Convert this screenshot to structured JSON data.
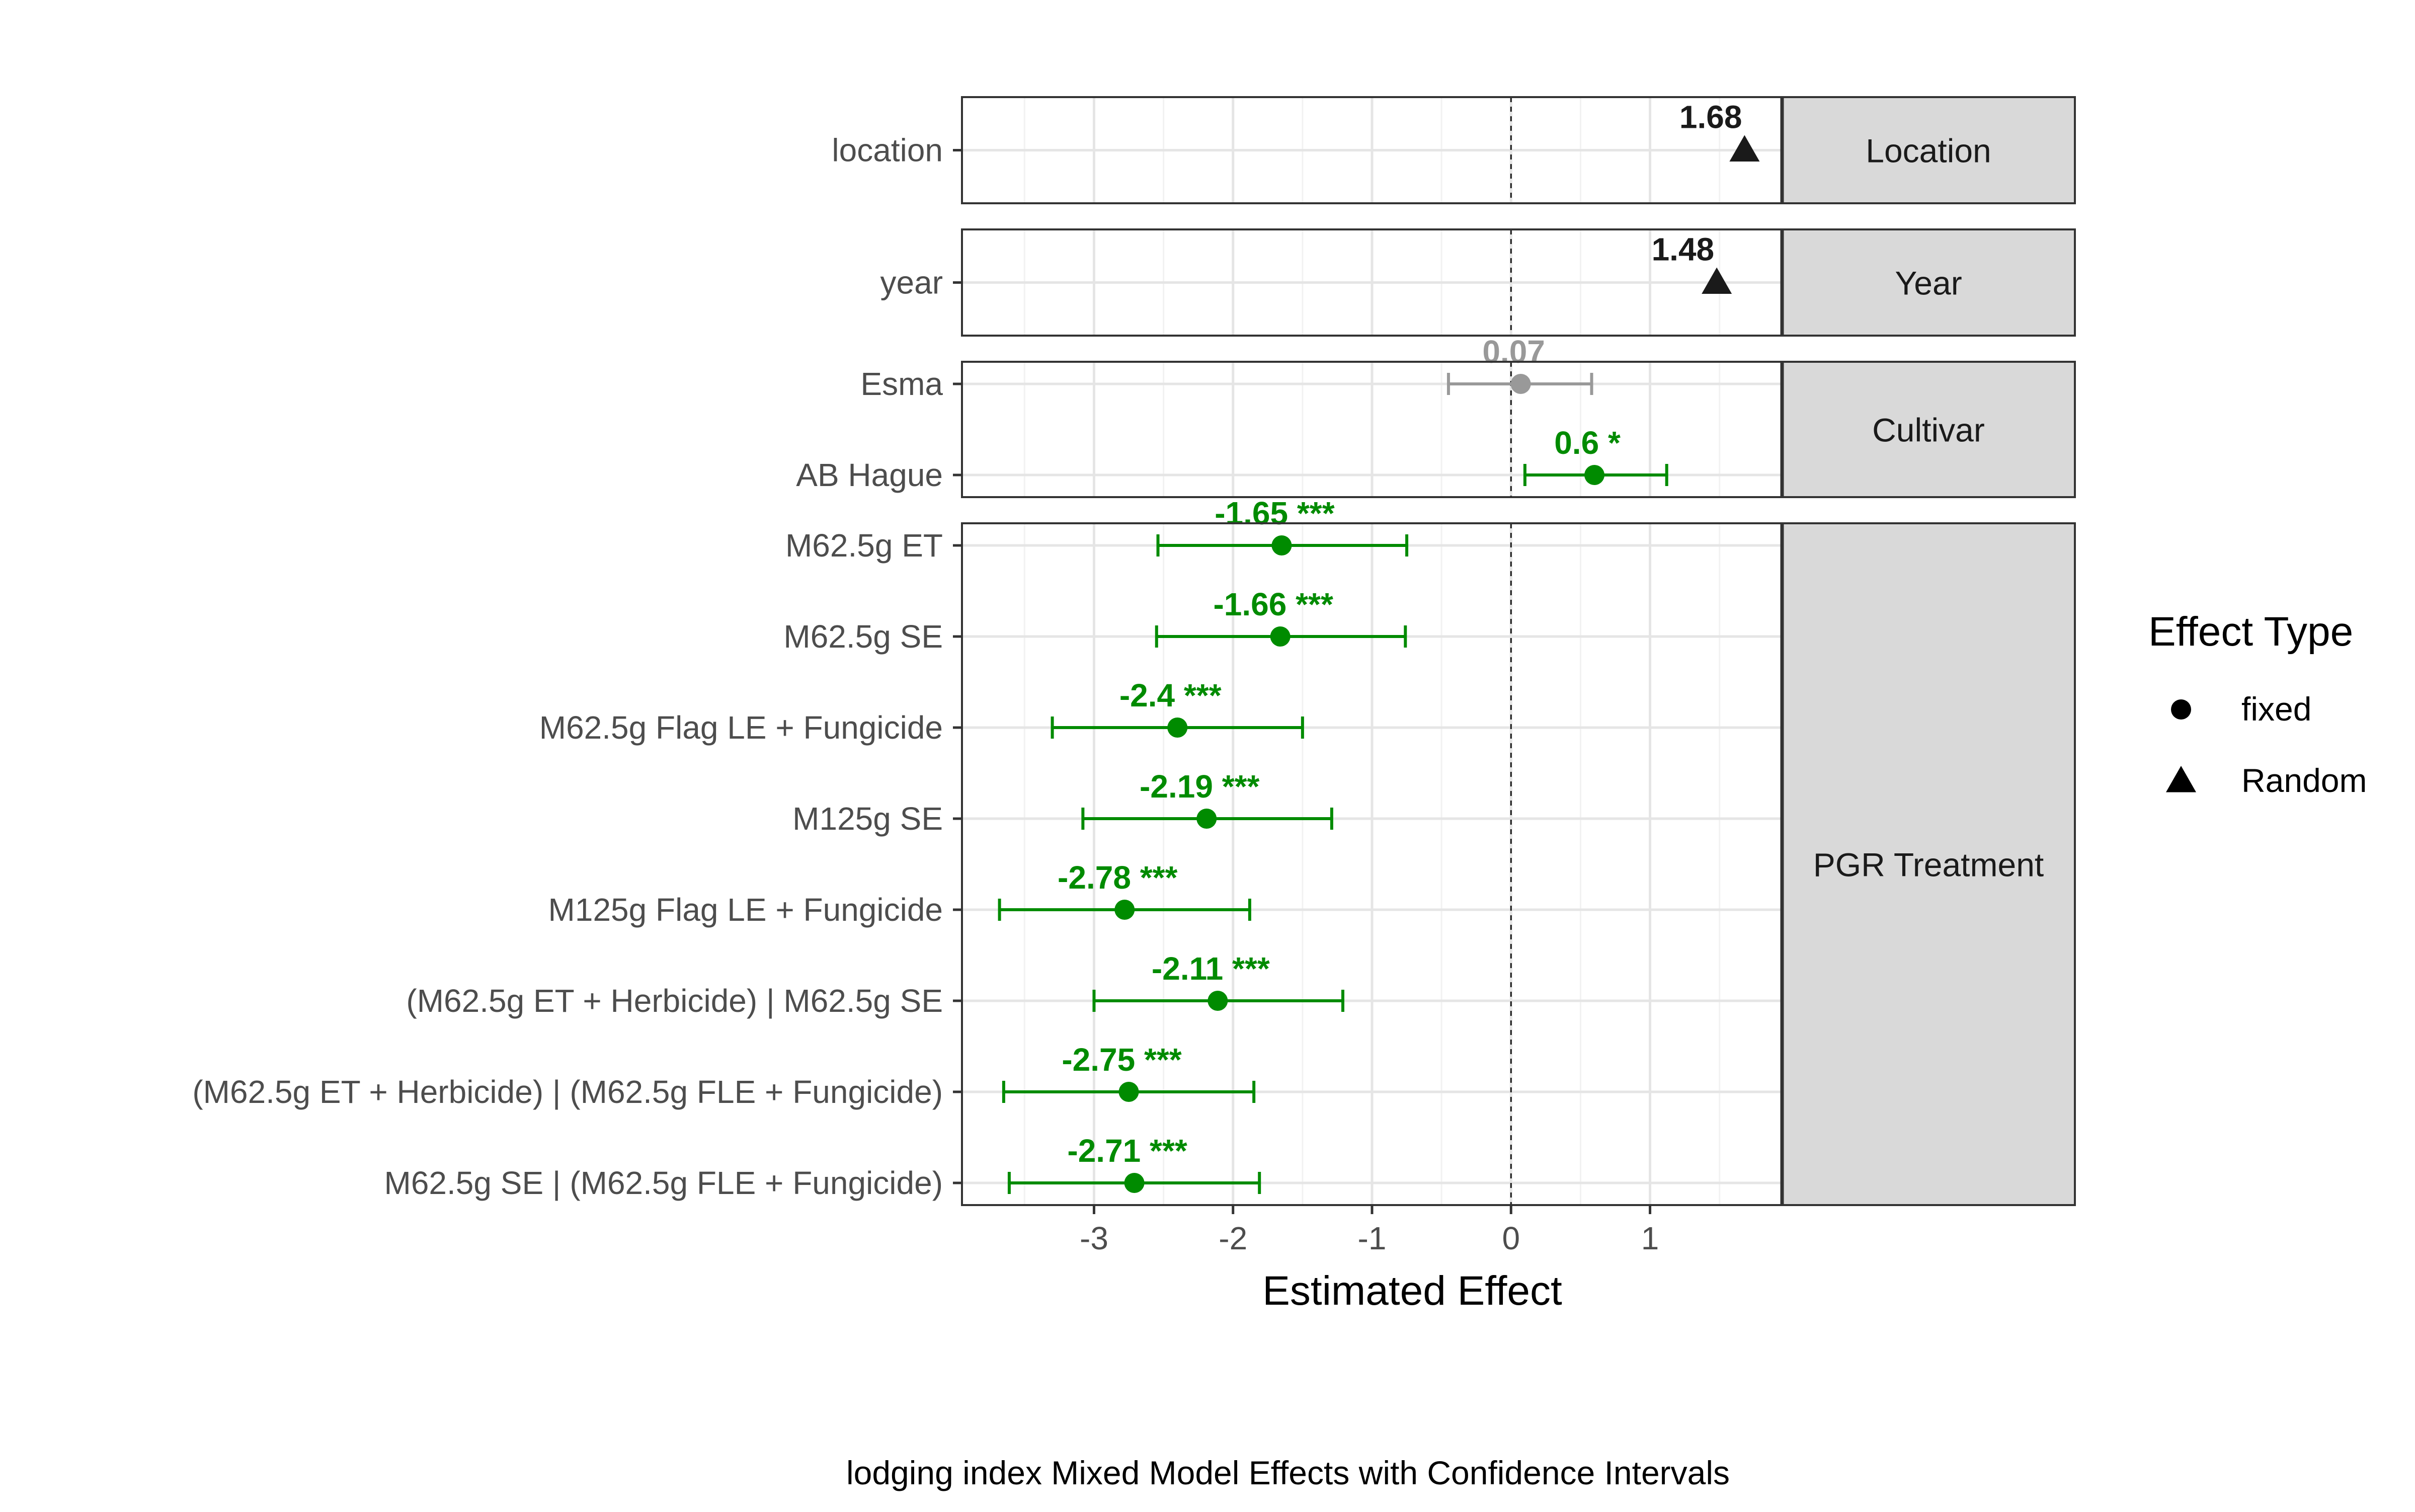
{
  "chart_data": {
    "type": "forest",
    "title": "",
    "caption": "lodging index Mixed Model Effects with Confidence Intervals",
    "xlabel": "Estimated Effect",
    "ylabel": "",
    "xlim": [
      -3.95,
      1.95
    ],
    "x_ticks": [
      -3,
      -2,
      -1,
      0,
      1
    ],
    "x_tick_labels": [
      "-3",
      "-2",
      "-1",
      "0",
      "1"
    ],
    "reference_line": 0,
    "grid": true,
    "legend": {
      "title": "Effect Type",
      "position": "right",
      "entries": [
        {
          "name": "fixed",
          "shape": "circle"
        },
        {
          "name": "Random",
          "shape": "triangle"
        }
      ]
    },
    "colors": {
      "significant": "#008B00",
      "not_significant": "#999999",
      "random": "#1a1a1a"
    },
    "panels": [
      {
        "strip": "Location",
        "rows": [
          {
            "term": "location",
            "estimate": 1.68,
            "label": "1.68",
            "type": "Random",
            "color": "random"
          }
        ]
      },
      {
        "strip": "Year",
        "rows": [
          {
            "term": "year",
            "estimate": 1.48,
            "label": "1.48",
            "type": "Random",
            "color": "random"
          }
        ]
      },
      {
        "strip": "Cultivar",
        "rows": [
          {
            "term": "Esma",
            "estimate": 0.07,
            "lower": -0.45,
            "upper": 0.58,
            "label": "0.07",
            "type": "fixed",
            "color": "not_significant"
          },
          {
            "term": "AB Hague",
            "estimate": 0.6,
            "lower": 0.1,
            "upper": 1.12,
            "label": "0.6 *",
            "type": "fixed",
            "color": "significant"
          }
        ]
      },
      {
        "strip": "PGR Treatment",
        "rows": [
          {
            "term": "M62.5g ET",
            "estimate": -1.65,
            "lower": -2.54,
            "upper": -0.75,
            "label": "-1.65 ***",
            "type": "fixed",
            "color": "significant"
          },
          {
            "term": "M62.5g SE",
            "estimate": -1.66,
            "lower": -2.55,
            "upper": -0.76,
            "label": "-1.66 ***",
            "type": "fixed",
            "color": "significant"
          },
          {
            "term": "M62.5g Flag LE + Fungicide",
            "estimate": -2.4,
            "lower": -3.3,
            "upper": -1.5,
            "label": "-2.4 ***",
            "type": "fixed",
            "color": "significant"
          },
          {
            "term": "M125g SE",
            "estimate": -2.19,
            "lower": -3.08,
            "upper": -1.29,
            "label": "-2.19 ***",
            "type": "fixed",
            "color": "significant"
          },
          {
            "term": "M125g Flag LE + Fungicide",
            "estimate": -2.78,
            "lower": -3.68,
            "upper": -1.88,
            "label": "-2.78 ***",
            "type": "fixed",
            "color": "significant"
          },
          {
            "term": "(M62.5g ET + Herbicide) | M62.5g SE",
            "estimate": -2.11,
            "lower": -3.0,
            "upper": -1.21,
            "label": "-2.11 ***",
            "type": "fixed",
            "color": "significant"
          },
          {
            "term": "(M62.5g ET + Herbicide) | (M62.5g FLE + Fungicide)",
            "estimate": -2.75,
            "lower": -3.65,
            "upper": -1.85,
            "label": "-2.75 ***",
            "type": "fixed",
            "color": "significant"
          },
          {
            "term": "M62.5g SE | (M62.5g FLE + Fungicide)",
            "estimate": -2.71,
            "lower": -3.61,
            "upper": -1.81,
            "label": "-2.71 ***",
            "type": "fixed",
            "color": "significant"
          }
        ]
      }
    ]
  }
}
